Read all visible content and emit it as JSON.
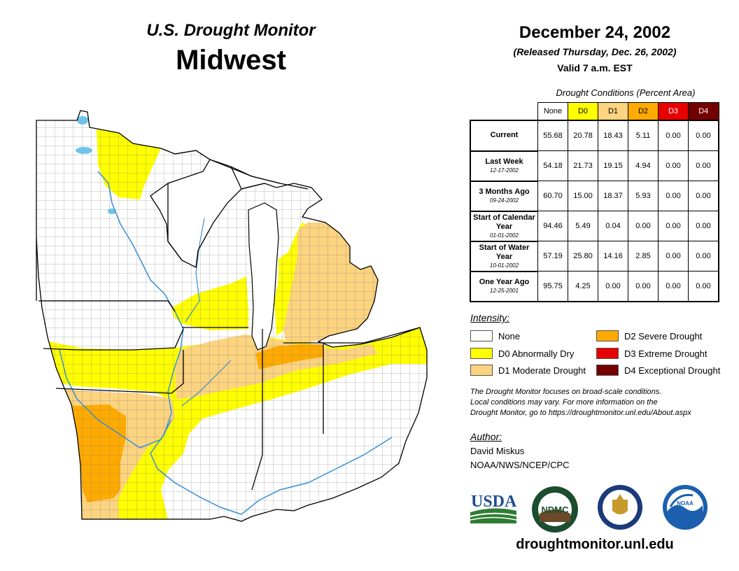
{
  "header": {
    "product": "U.S. Drought Monitor",
    "region": "Midwest",
    "date": "December 24, 2002",
    "released": "(Released Thursday, Dec. 26, 2002)",
    "valid": "Valid 7 a.m. EST"
  },
  "table": {
    "caption": "Drought Conditions (Percent Area)",
    "columns": [
      {
        "label": "None",
        "color": "#ffffff",
        "text_color": "#000000"
      },
      {
        "label": "D0",
        "color": "#ffff00",
        "text_color": "#000000"
      },
      {
        "label": "D1",
        "color": "#fcd37f",
        "text_color": "#000000"
      },
      {
        "label": "D2",
        "color": "#ffaa00",
        "text_color": "#000000"
      },
      {
        "label": "D3",
        "color": "#e60000",
        "text_color": "#ffffff"
      },
      {
        "label": "D4",
        "color": "#730000",
        "text_color": "#ffffff"
      }
    ],
    "rows": [
      {
        "label": "Current",
        "sublabel": "",
        "values": [
          "55.68",
          "20.78",
          "18.43",
          "5.11",
          "0.00",
          "0.00"
        ]
      },
      {
        "label": "Last Week",
        "sublabel": "12-17-2002",
        "values": [
          "54.18",
          "21.73",
          "19.15",
          "4.94",
          "0.00",
          "0.00"
        ]
      },
      {
        "label": "3 Months Ago",
        "sublabel": "09-24-2002",
        "values": [
          "60.70",
          "15.00",
          "18.37",
          "5.93",
          "0.00",
          "0.00"
        ]
      },
      {
        "label": "Start of Calendar Year",
        "sublabel": "01-01-2002",
        "values": [
          "94.46",
          "5.49",
          "0.04",
          "0.00",
          "0.00",
          "0.00"
        ]
      },
      {
        "label": "Start of Water Year",
        "sublabel": "10-01-2002",
        "values": [
          "57.19",
          "25.80",
          "14.16",
          "2.85",
          "0.00",
          "0.00"
        ]
      },
      {
        "label": "One Year Ago",
        "sublabel": "12-25-2001",
        "values": [
          "95.75",
          "4.25",
          "0.00",
          "0.00",
          "0.00",
          "0.00"
        ]
      }
    ]
  },
  "legend": {
    "title": "Intensity:",
    "items": [
      {
        "label": "None",
        "color": "#ffffff"
      },
      {
        "label": "D0 Abnormally Dry",
        "color": "#ffff00"
      },
      {
        "label": "D1 Moderate Drought",
        "color": "#fcd37f"
      },
      {
        "label": "D2 Severe Drought",
        "color": "#ffaa00"
      },
      {
        "label": "D3 Extreme Drought",
        "color": "#e60000"
      },
      {
        "label": "D4 Exceptional Drought",
        "color": "#730000"
      }
    ]
  },
  "note": {
    "line1": "The Drought Monitor focuses on broad-scale conditions.",
    "line2": "Local conditions may vary. For more information on the",
    "line3": "Drought Monitor, go to https://droughtmonitor.unl.edu/About.aspx"
  },
  "author": {
    "heading": "Author:",
    "name": "David Miskus",
    "org": "NOAA/NWS/NCEP/CPC"
  },
  "logos": [
    {
      "name": "usda-logo",
      "text": "USDA"
    },
    {
      "name": "ndmc-logo",
      "text": "NDMC"
    },
    {
      "name": "doc-seal-logo",
      "text": ""
    },
    {
      "name": "noaa-logo",
      "text": "NOAA"
    }
  ],
  "footer": {
    "url": "droughtmonitor.unl.edu"
  },
  "map": {
    "colors": {
      "none": "#ffffff",
      "d0": "#ffff00",
      "d1": "#fcd37f",
      "d2": "#ffaa00",
      "water": "#6ec3e8",
      "border": "#000000",
      "county": "#777777"
    }
  }
}
